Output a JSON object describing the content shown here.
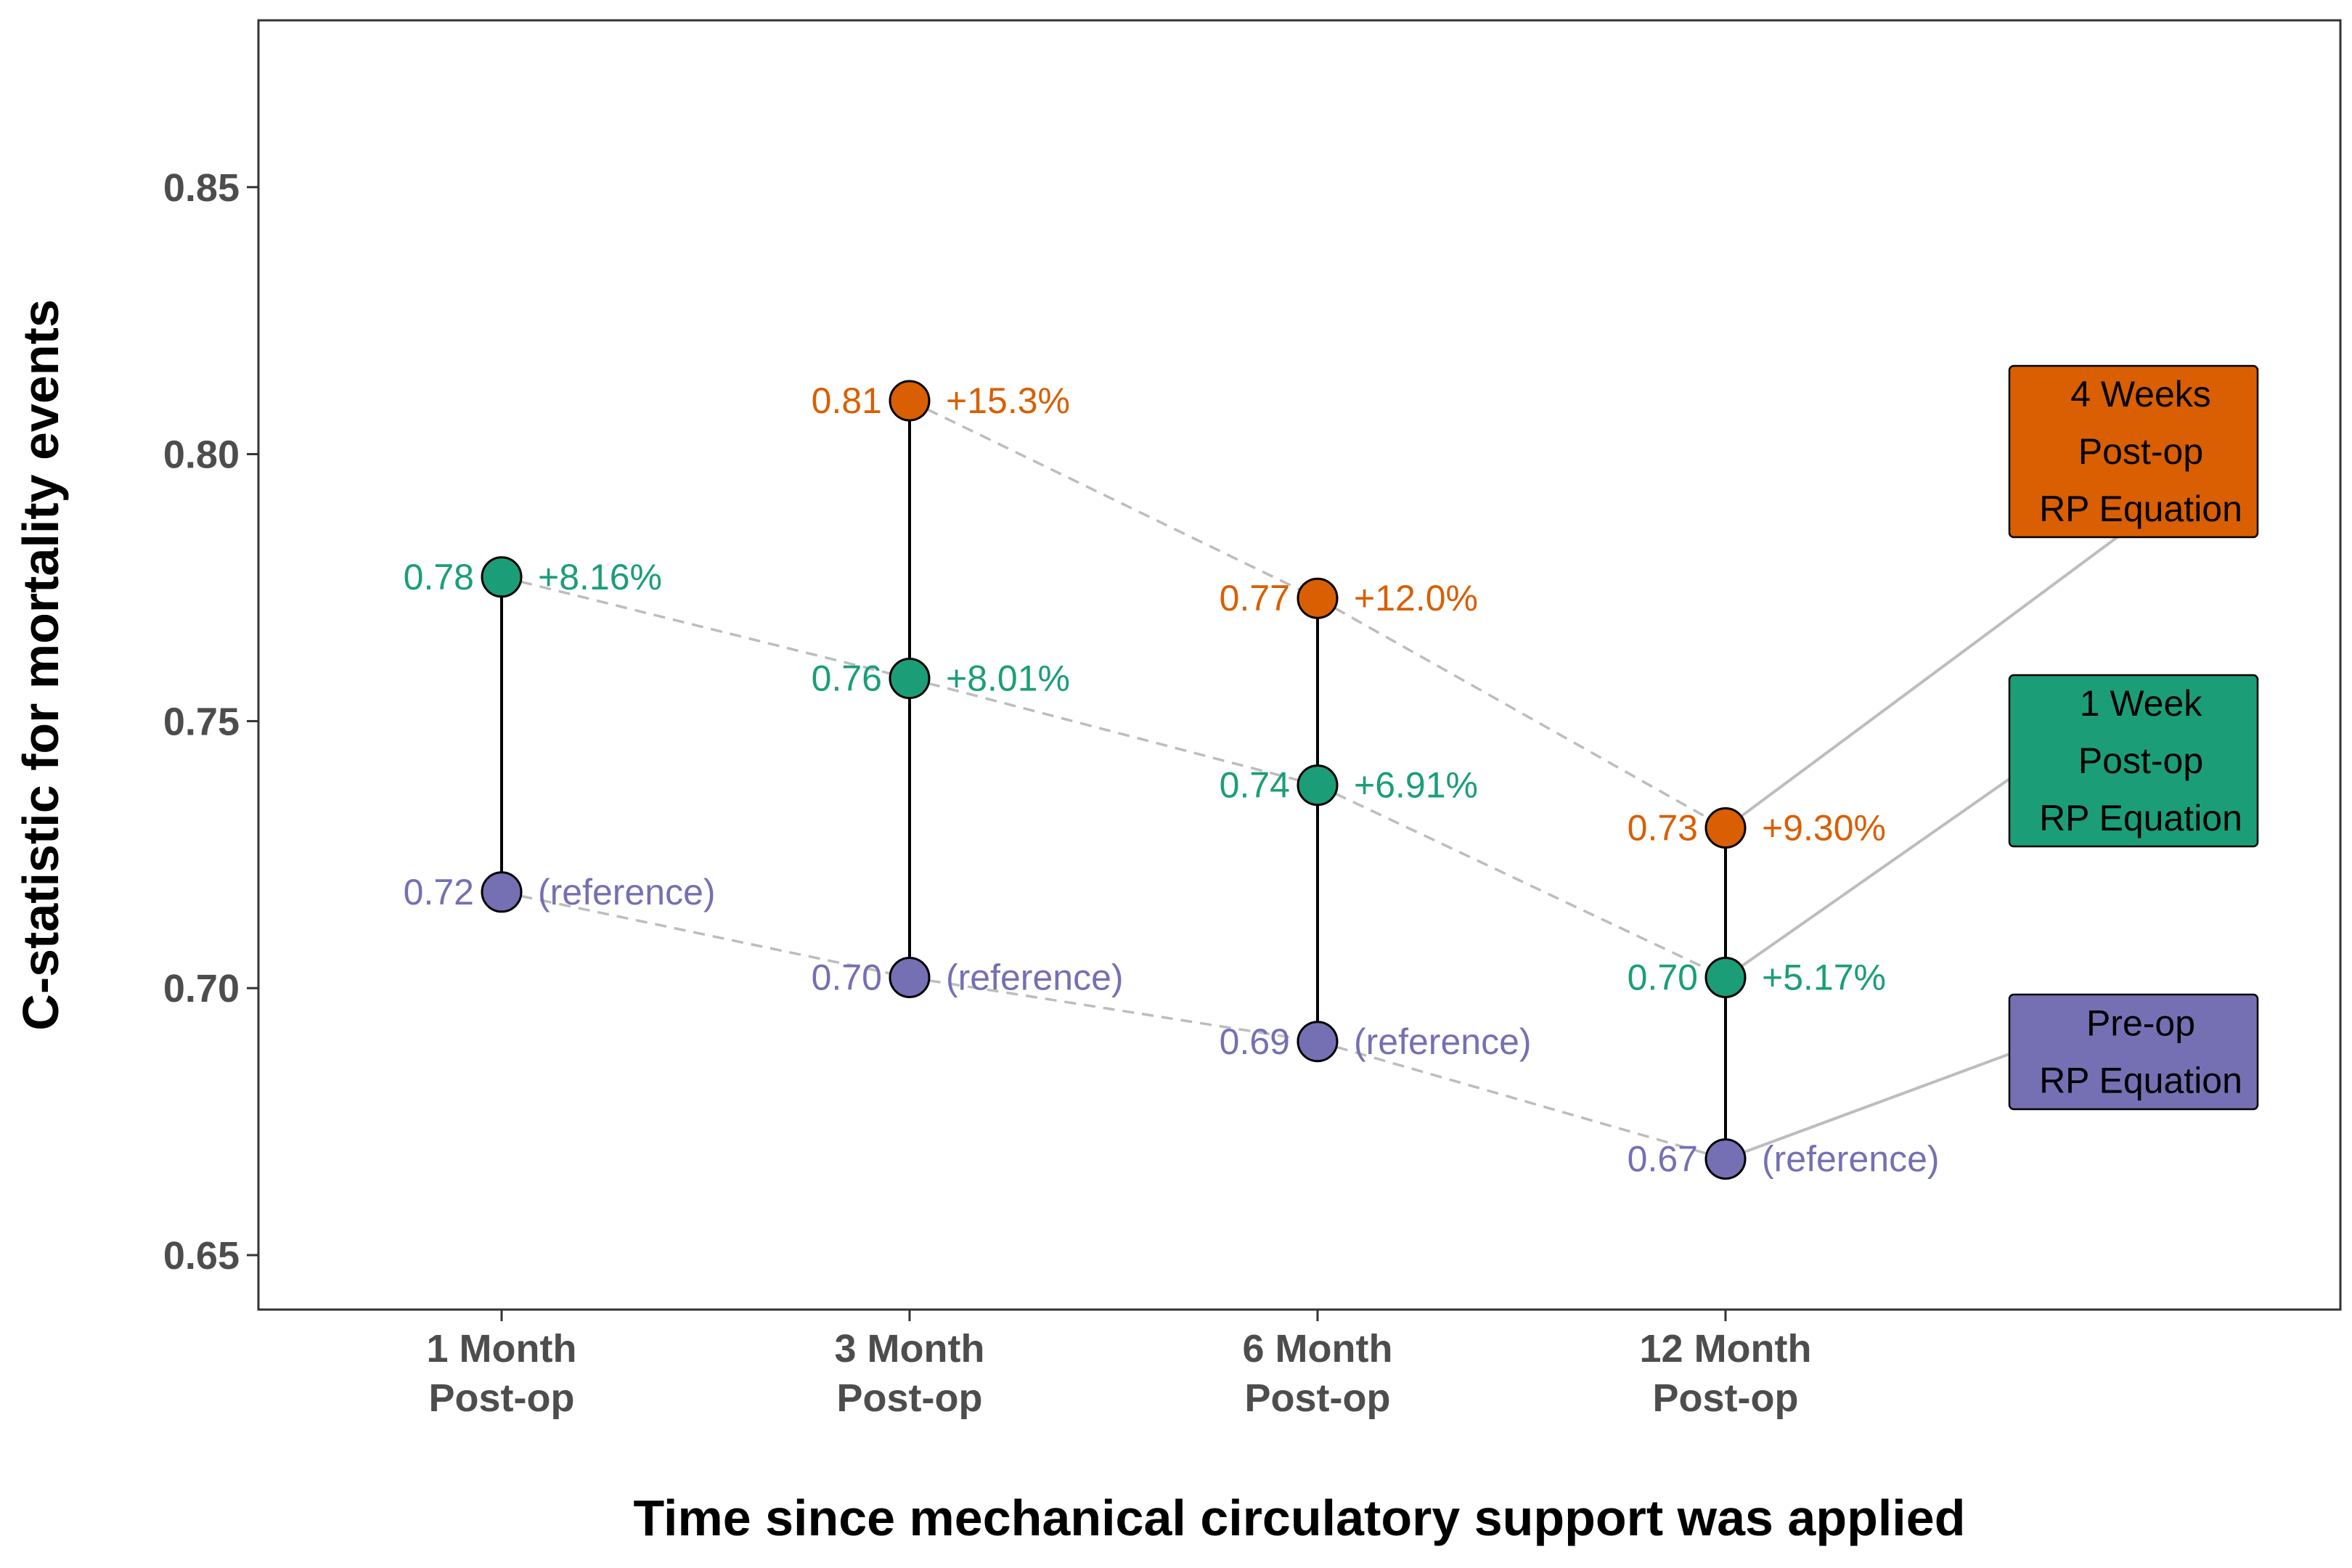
{
  "chart_data": {
    "type": "scatter",
    "xlabel": "Time since mechanical circulatory support was applied",
    "ylabel": "C-statistic for mortality events",
    "ylim": [
      0.64,
      0.881
    ],
    "yticks": [
      0.65,
      0.7,
      0.75,
      0.8,
      0.85
    ],
    "ytick_labels": [
      "0.65",
      "0.70",
      "0.75",
      "0.80",
      "0.85"
    ],
    "categories": [
      [
        "1 Month",
        "Post-op"
      ],
      [
        "3 Month",
        "Post-op"
      ],
      [
        "6 Month",
        "Post-op"
      ],
      [
        "12 Month",
        "Post-op"
      ]
    ],
    "grid": false,
    "legend_placement": "right",
    "series": [
      {
        "key": "preop",
        "color": "#7570b3",
        "legend_lines": [
          "Pre-op",
          "RP Equation"
        ],
        "values": [
          0.718,
          0.702,
          0.69,
          0.668
        ],
        "value_labels": [
          "0.72",
          "0.70",
          "0.69",
          "0.67"
        ],
        "pct_labels": [
          "(reference)",
          "(reference)",
          "(reference)",
          "(reference)"
        ]
      },
      {
        "key": "week1",
        "color": "#1b9e77",
        "legend_lines": [
          "1 Week",
          "Post-op",
          "RP Equation"
        ],
        "values": [
          0.777,
          0.758,
          0.738,
          0.702
        ],
        "value_labels": [
          "0.78",
          "0.76",
          "0.74",
          "0.70"
        ],
        "pct_labels": [
          "+8.16%",
          "+8.01%",
          "+6.91%",
          "+5.17%"
        ]
      },
      {
        "key": "week4",
        "color": "#d95f02",
        "legend_lines": [
          "4 Weeks",
          "Post-op",
          "RP Equation"
        ],
        "values": [
          null,
          0.81,
          0.773,
          0.73
        ],
        "value_labels": [
          null,
          "0.81",
          "0.77",
          "0.73"
        ],
        "pct_labels": [
          null,
          "+15.3%",
          "+12.0%",
          "+9.30%"
        ]
      }
    ]
  }
}
